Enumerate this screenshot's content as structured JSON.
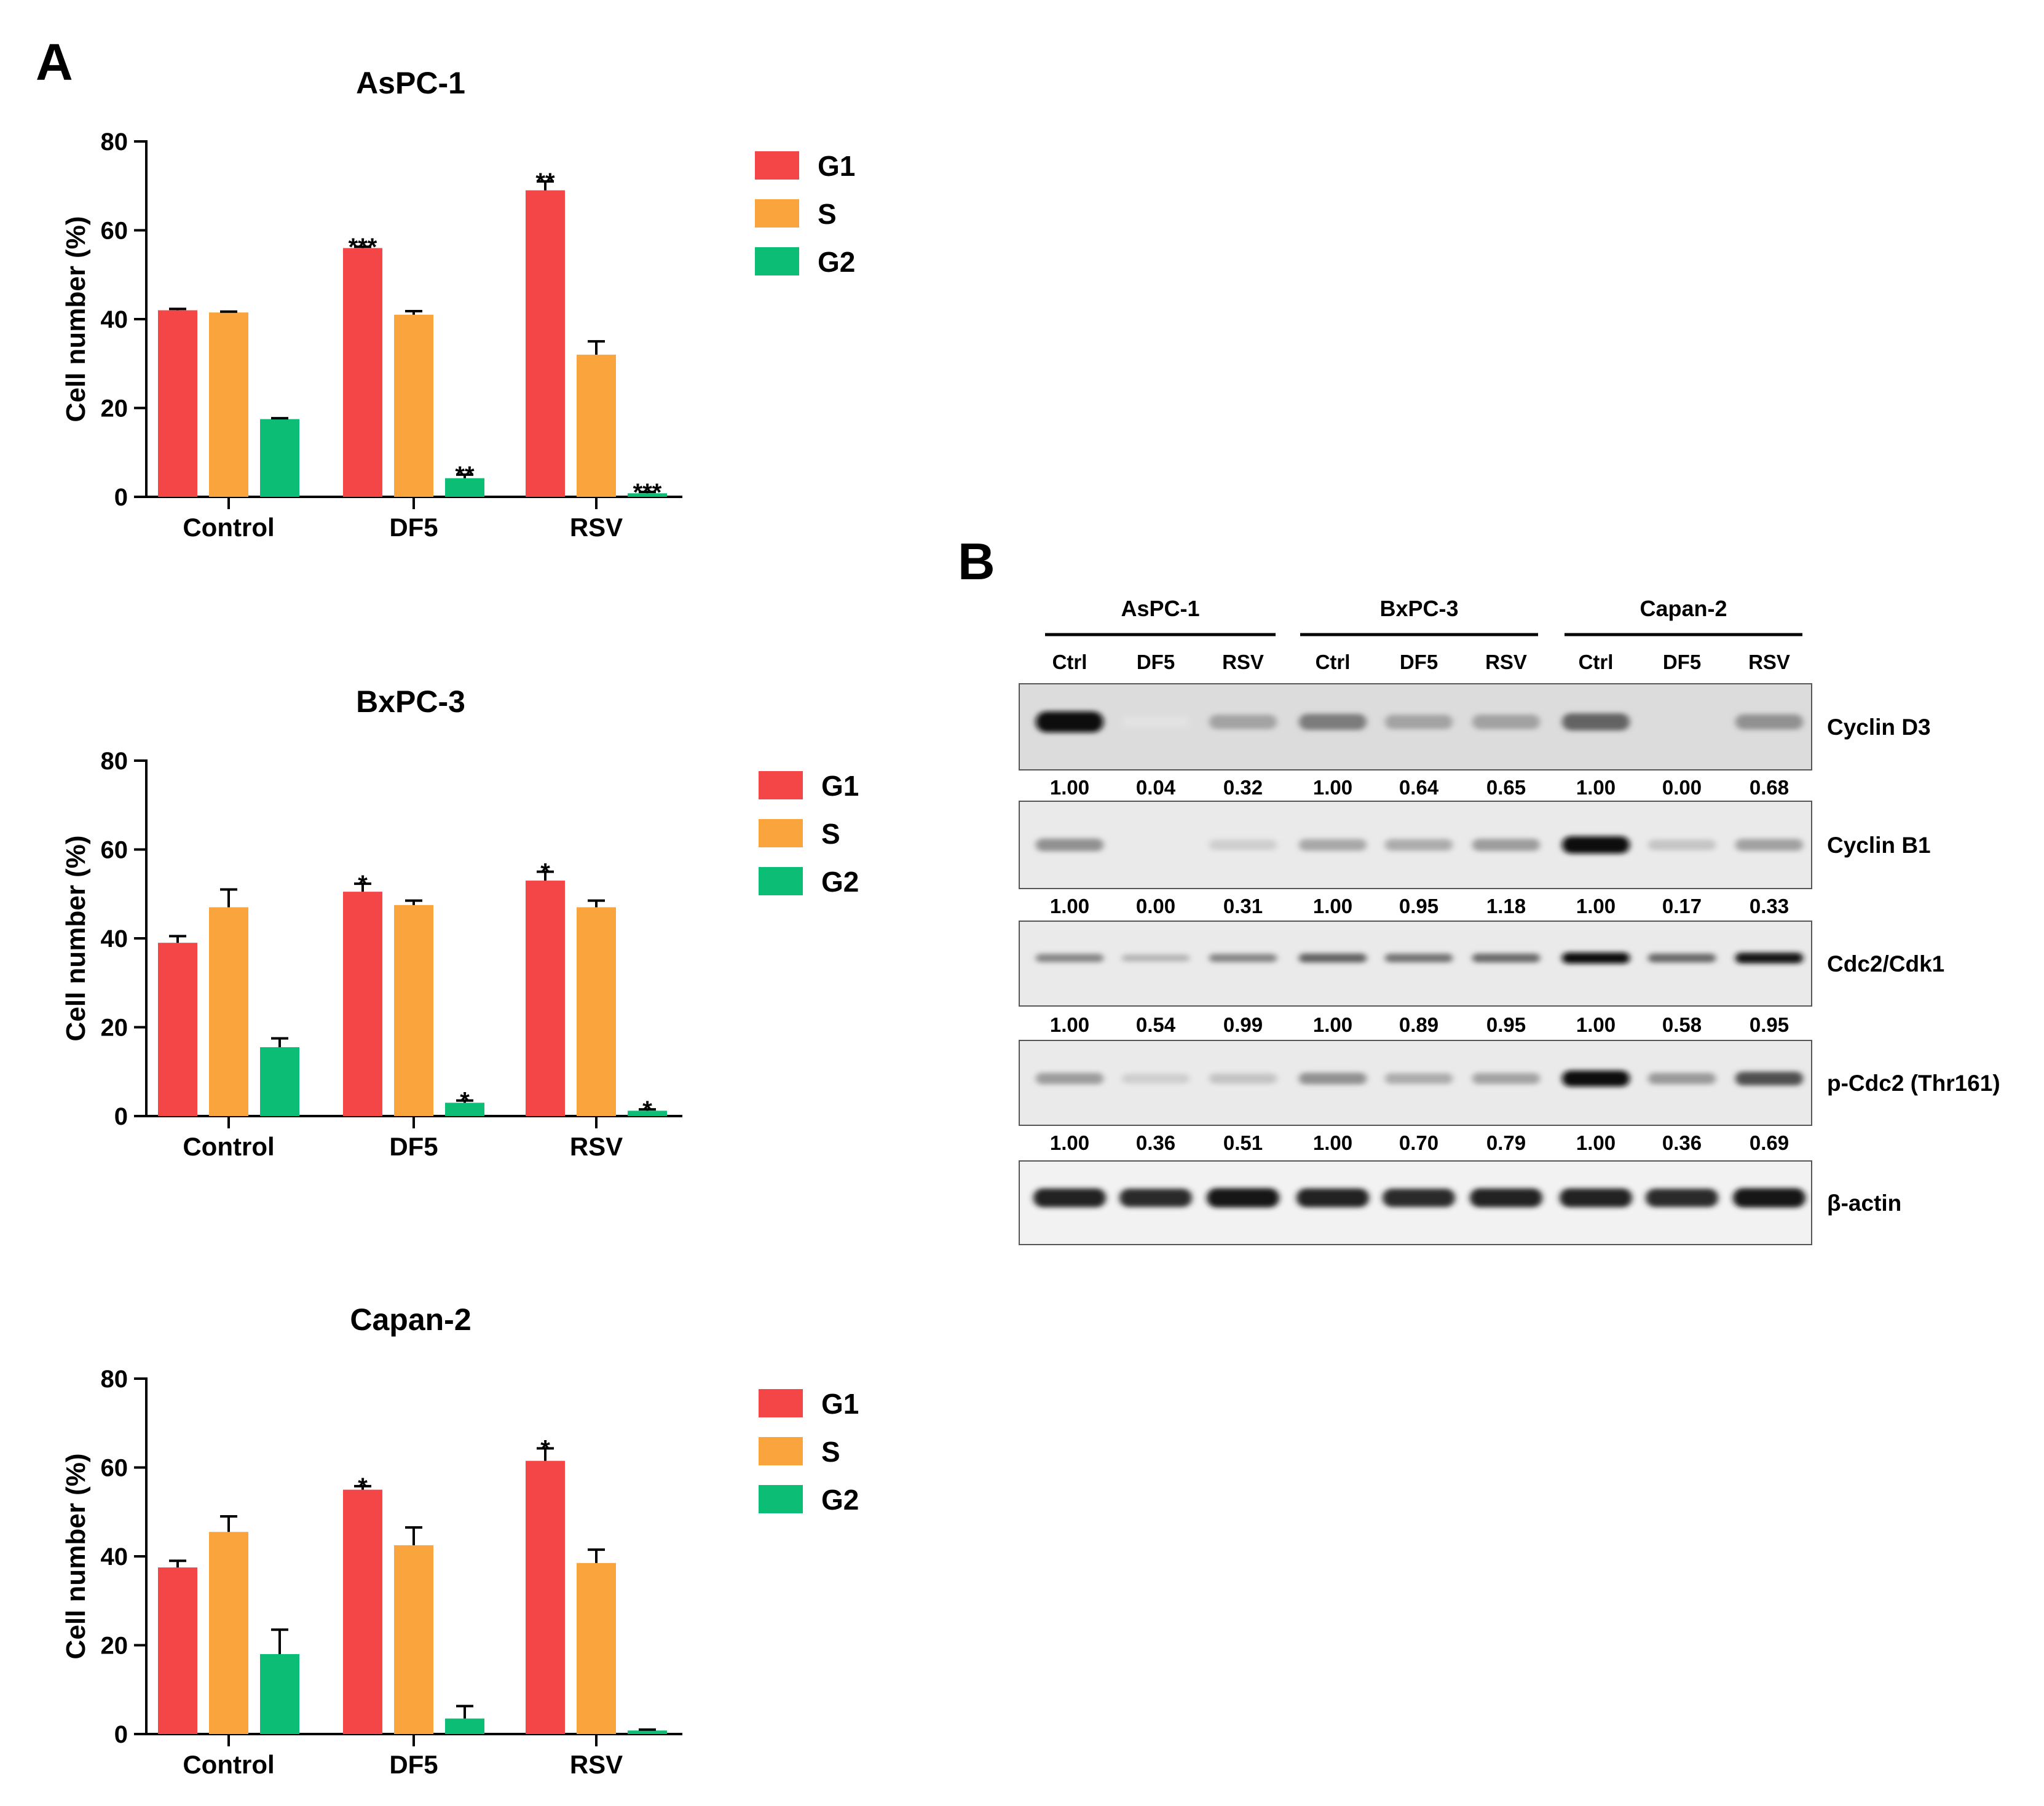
{
  "colors": {
    "G1": "#f44646",
    "S": "#f9a43c",
    "G2": "#0cbd76",
    "axis": "#000000",
    "text": "#000000"
  },
  "panel_a": {
    "label": "A"
  },
  "panel_b": {
    "label": "B"
  },
  "chart_data": [
    {
      "type": "bar",
      "title": "AsPC-1",
      "xlabel": "",
      "ylabel": "Cell number (%)",
      "ylim": [
        0,
        80
      ],
      "yticks": [
        "0",
        "20",
        "40",
        "60",
        "80"
      ],
      "categories": [
        "Control",
        "DF5",
        "RSV"
      ],
      "series": [
        {
          "name": "G1",
          "values": [
            42,
            56,
            69
          ],
          "errors": [
            0.3,
            0.3,
            2.0
          ],
          "stars": [
            "",
            "***",
            "**"
          ]
        },
        {
          "name": "S",
          "values": [
            41.5,
            41,
            32
          ],
          "errors": [
            0.2,
            0.8,
            3.0
          ],
          "stars": [
            "",
            "",
            ""
          ]
        },
        {
          "name": "G2",
          "values": [
            17.5,
            4.2,
            0.8
          ],
          "errors": [
            0.2,
            0.8,
            0.3
          ],
          "stars": [
            "",
            "**",
            "***"
          ]
        }
      ],
      "legend": [
        "G1",
        "S",
        "G2"
      ]
    },
    {
      "type": "bar",
      "title": "BxPC-3",
      "xlabel": "",
      "ylabel": "Cell number (%)",
      "ylim": [
        0,
        80
      ],
      "yticks": [
        "0",
        "20",
        "40",
        "60",
        "80"
      ],
      "categories": [
        "Control",
        "DF5",
        "RSV"
      ],
      "series": [
        {
          "name": "G1",
          "values": [
            39,
            50.5,
            53
          ],
          "errors": [
            1.5,
            1.8,
            2.0
          ],
          "stars": [
            "",
            "*",
            "*"
          ]
        },
        {
          "name": "S",
          "values": [
            47,
            47.5,
            47
          ],
          "errors": [
            4.0,
            1.0,
            1.5
          ],
          "stars": [
            "",
            "",
            ""
          ]
        },
        {
          "name": "G2",
          "values": [
            15.5,
            3,
            1.2
          ],
          "errors": [
            2.0,
            0.5,
            0.3
          ],
          "stars": [
            "",
            "*",
            "*"
          ]
        }
      ],
      "legend": [
        "G1",
        "S",
        "G2"
      ]
    },
    {
      "type": "bar",
      "title": "Capan-2",
      "xlabel": "",
      "ylabel": "Cell number (%)",
      "ylim": [
        0,
        80
      ],
      "yticks": [
        "0",
        "20",
        "40",
        "60",
        "80"
      ],
      "categories": [
        "Control",
        "DF5",
        "RSV"
      ],
      "series": [
        {
          "name": "G1",
          "values": [
            37.5,
            55,
            61.5
          ],
          "errors": [
            1.5,
            0.8,
            2.8
          ],
          "stars": [
            "",
            "*",
            "*"
          ]
        },
        {
          "name": "S",
          "values": [
            45.5,
            42.5,
            38.5
          ],
          "errors": [
            3.5,
            4.0,
            3.0
          ],
          "stars": [
            "",
            "",
            ""
          ]
        },
        {
          "name": "G2",
          "values": [
            18,
            3.5,
            0.8
          ],
          "errors": [
            5.5,
            2.8,
            0.2
          ],
          "stars": [
            "",
            "",
            ""
          ]
        }
      ],
      "legend": [
        "G1",
        "S",
        "G2"
      ]
    }
  ],
  "western_blot": {
    "groups": [
      "AsPC-1",
      "BxPC-3",
      "Capan-2"
    ],
    "lanes": [
      "Ctrl",
      "DF5",
      "RSV",
      "Ctrl",
      "DF5",
      "RSV",
      "Ctrl",
      "DF5",
      "RSV"
    ],
    "proteins": [
      {
        "name": "Cyclin D3",
        "quant": [
          "1.00",
          "0.04",
          "0.32",
          "1.00",
          "0.64",
          "0.65",
          "1.00",
          "0.00",
          "0.68"
        ]
      },
      {
        "name": "Cyclin B1",
        "quant": [
          "1.00",
          "0.00",
          "0.31",
          "1.00",
          "0.95",
          "1.18",
          "1.00",
          "0.17",
          "0.33"
        ]
      },
      {
        "name": "Cdc2/Cdk1",
        "quant": [
          "1.00",
          "0.54",
          "0.99",
          "1.00",
          "0.89",
          "0.95",
          "1.00",
          "0.58",
          "0.95"
        ]
      },
      {
        "name": "p-Cdc2 (Thr161)",
        "quant": [
          "1.00",
          "0.36",
          "0.51",
          "1.00",
          "0.70",
          "0.79",
          "1.00",
          "0.36",
          "0.69"
        ]
      },
      {
        "name": "β-actin",
        "quant": []
      }
    ],
    "band_intensity": [
      [
        1.0,
        0.04,
        0.32,
        0.5,
        0.32,
        0.33,
        0.6,
        0.0,
        0.4
      ],
      [
        0.4,
        0.0,
        0.13,
        0.3,
        0.28,
        0.35,
        1.0,
        0.17,
        0.33
      ],
      [
        0.45,
        0.24,
        0.45,
        0.6,
        0.53,
        0.57,
        1.0,
        0.58,
        0.95
      ],
      [
        0.35,
        0.13,
        0.18,
        0.4,
        0.28,
        0.32,
        1.0,
        0.36,
        0.69
      ],
      [
        0.9,
        0.85,
        0.95,
        0.9,
        0.85,
        0.9,
        0.9,
        0.85,
        0.95
      ]
    ]
  }
}
